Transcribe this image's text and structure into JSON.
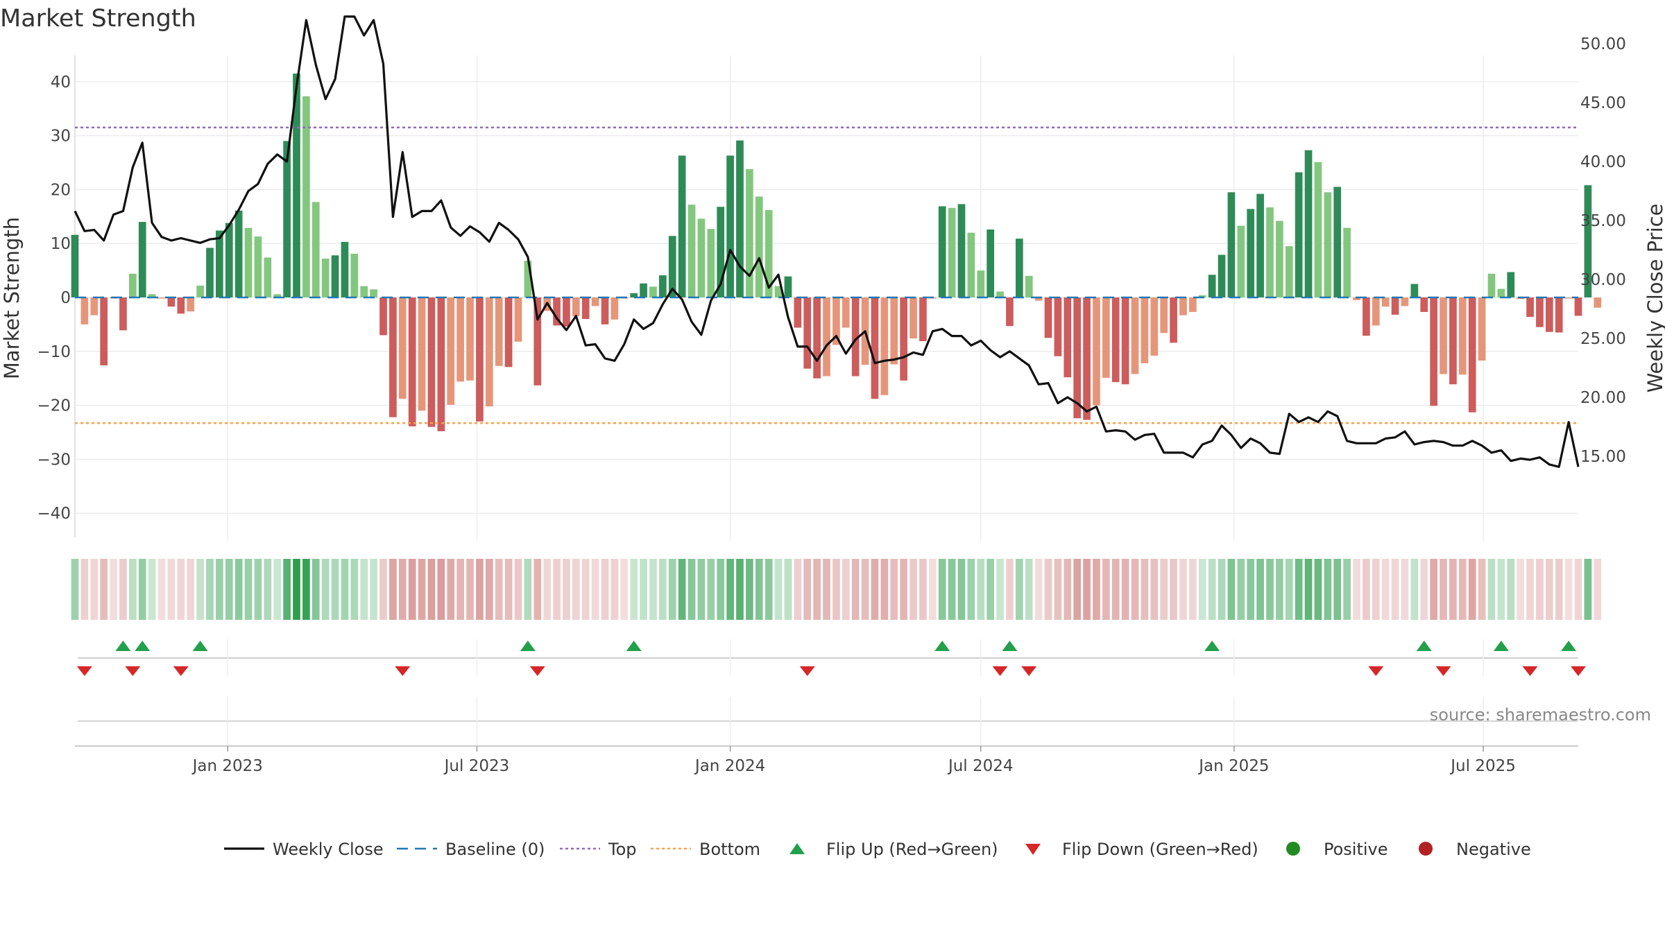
{
  "chart_data": {
    "type": "bar",
    "title": "Market Strength",
    "ylabel_left": "Market Strength",
    "ylabel_right": "Weekly Close Price",
    "ylim_left": [
      -45,
      45
    ],
    "ylim_right": [
      11.5,
      57.4
    ],
    "yticks_left": [
      "40",
      "30",
      "20",
      "10",
      "0",
      "−10",
      "−20",
      "−30",
      "−40"
    ],
    "yticks_left_values": [
      40,
      30,
      20,
      10,
      0,
      -10,
      -20,
      -30,
      -40
    ],
    "yticks_right": [
      "50.00",
      "45.00",
      "40.00",
      "35.00",
      "30.00",
      "25.00",
      "20.00",
      "15.00"
    ],
    "yticks_right_values": [
      50,
      45,
      40,
      35,
      30,
      25,
      20,
      15
    ],
    "x_range": [
      "2022-09-12",
      "2025-09-08"
    ],
    "xticks": [
      {
        "label": "Jan 2023",
        "date": "2023-01-01"
      },
      {
        "label": "Jul 2023",
        "date": "2023-07-01"
      },
      {
        "label": "Jan 2024",
        "date": "2024-01-01"
      },
      {
        "label": "Jul 2024",
        "date": "2024-07-01"
      },
      {
        "label": "Jan 2025",
        "date": "2025-01-01"
      },
      {
        "label": "Jul 2025",
        "date": "2025-07-01"
      }
    ],
    "top_level": 31.5,
    "bottom_level": -23.3,
    "grid": true,
    "start_date": "2022-09-12",
    "series": [
      {
        "name": "Market Strength",
        "type": "bar",
        "values": [
          11.6,
          -5,
          -3.3,
          -12.6,
          -0.2,
          -6.1,
          4.4,
          14,
          0.6,
          -0.2,
          -1.7,
          -3,
          -2.6,
          2.2,
          9.2,
          12.4,
          13.8,
          16.1,
          12.9,
          11.3,
          7.4,
          0.6,
          29,
          41.5,
          37.3,
          17.7,
          7.2,
          7.8,
          10.3,
          8.1,
          2.1,
          1.5,
          -7,
          -22.2,
          -18.8,
          -23.9,
          -21,
          -24,
          -24.8,
          -19.9,
          -15.6,
          -15.4,
          -23,
          -20.2,
          -12.7,
          -12.9,
          -8.2,
          6.8,
          -16.3,
          -2.5,
          -5.2,
          -5.4,
          -3.5,
          -4,
          -1.6,
          -5,
          -4.1,
          -0.2,
          0.8,
          2.6,
          2,
          4.1,
          11.4,
          26.3,
          17.2,
          14.6,
          12.7,
          16.8,
          26.3,
          29.1,
          23.8,
          18.7,
          16.2,
          2.1,
          3.9,
          -5.6,
          -13.2,
          -15,
          -14.6,
          -8.8,
          -5.6,
          -14.6,
          -12.5,
          -18.8,
          -18.1,
          -12.4,
          -15.4,
          -7.6,
          -8.1,
          -0.2,
          16.9,
          16.6,
          17.3,
          12,
          5,
          12.6,
          1.1,
          -5.3,
          10.9,
          4,
          -0.6,
          -7.5,
          -10.9,
          -14.8,
          -22.4,
          -22.7,
          -20,
          -14.9,
          -15.7,
          -16.1,
          -14.2,
          -12.2,
          -10.8,
          -6.6,
          -8.4,
          -3.3,
          -2.7,
          0.4,
          4.2,
          7.9,
          19.5,
          13.3,
          16.4,
          19.2,
          16.7,
          14.2,
          9.5,
          23.2,
          27.3,
          25.1,
          19.5,
          20.5,
          12.9,
          -0.5,
          -7.1,
          -5.2,
          -1.7,
          -3.2,
          -1.6,
          2.5,
          -2.7,
          -20.1,
          -14.2,
          -16.1,
          -14.3,
          -21.3,
          -11.7,
          4.4,
          1.6,
          4.7,
          -0.3,
          -3.6,
          -5.5,
          -6.4,
          -6.5,
          -0.2,
          -3.4,
          20.8,
          -1.9
        ]
      },
      {
        "name": "Weekly Close",
        "type": "line",
        "values": [
          35.8,
          34.1,
          34.2,
          33.3,
          35.5,
          35.8,
          39.5,
          41.6,
          34.8,
          33.6,
          33.3,
          33.5,
          33.3,
          33.1,
          33.4,
          33.5,
          34.6,
          35.9,
          37.5,
          38.1,
          39.8,
          40.6,
          40,
          46.4,
          52,
          48.2,
          45.3,
          47,
          52.3,
          52.3,
          50.7,
          52,
          48.3,
          35.3,
          40.8,
          35.3,
          35.8,
          35.8,
          36.7,
          34.4,
          33.7,
          34.5,
          34,
          33.2,
          34.8,
          34.2,
          33.4,
          31.9,
          26.6,
          28,
          26.7,
          25.7,
          26.9,
          24.4,
          24.5,
          23.3,
          23.1,
          24.5,
          26.6,
          25.8,
          26.3,
          27.9,
          29.2,
          28.3,
          26.4,
          25.3,
          28.2,
          29.6,
          32.5,
          31.1,
          30.3,
          31.8,
          29.3,
          30.4,
          26.8,
          24.3,
          24.3,
          23.1,
          24.4,
          25.2,
          23.7,
          24.9,
          25.6,
          22.9,
          23.1,
          23.2,
          23.4,
          23.8,
          23.6,
          25.6,
          25.8,
          25.2,
          25.2,
          24.4,
          24.8,
          24,
          23.4,
          23.9,
          23.3,
          22.7,
          21.1,
          21.2,
          19.5,
          20,
          19.5,
          18.8,
          19.2,
          17.1,
          17.2,
          17.1,
          16.4,
          16.8,
          16.9,
          15.3,
          15.3,
          15.3,
          14.9,
          16,
          16.3,
          17.6,
          16.8,
          15.7,
          16.5,
          16.1,
          15.3,
          15.2,
          18.6,
          17.9,
          18.3,
          17.9,
          18.8,
          18.4,
          16.3,
          16.1,
          16.1,
          16.1,
          16.5,
          16.6,
          17.1,
          16,
          16.2,
          16.3,
          16.2,
          15.9,
          15.9,
          16.3,
          15.9,
          15.3,
          15.5,
          14.6,
          14.8,
          14.7,
          14.9,
          14.3,
          14.1,
          17.9,
          14.1
        ]
      }
    ],
    "colors": {
      "strong_pos": "#2e8b57",
      "weak_pos": "#83c77f",
      "strong_neg": "#cd5c5c",
      "weak_neg": "#e5967a",
      "line": "#111111",
      "baseline": "#1f77b4",
      "top": "#9467bd",
      "bottom": "#ff9f4a",
      "flip_up": "#22a04a",
      "flip_down": "#d62728",
      "positive": "#228b22",
      "negative": "#b22222"
    },
    "flips_up_dates": [
      "2022-10-17",
      "2022-10-31",
      "2022-12-12",
      "2023-08-07",
      "2023-10-23",
      "2024-06-03",
      "2024-07-22",
      "2024-12-16",
      "2025-05-19",
      "2025-07-14",
      "2025-09-01"
    ],
    "flips_down_dates": [
      "2022-09-19",
      "2022-10-24",
      "2022-11-28",
      "2023-05-08",
      "2023-08-14",
      "2024-02-26",
      "2024-07-15",
      "2024-08-05",
      "2025-04-14",
      "2025-06-02",
      "2025-08-04",
      "2025-09-08"
    ],
    "legend": [
      {
        "label": "Weekly Close",
        "kind": "line"
      },
      {
        "label": "Baseline (0)",
        "kind": "dash"
      },
      {
        "label": "Top",
        "kind": "dot-top"
      },
      {
        "label": "Bottom",
        "kind": "dot-bottom"
      },
      {
        "label": "Flip Up (Red→Green)",
        "kind": "tri-up"
      },
      {
        "label": "Flip Down (Green→Red)",
        "kind": "tri-down"
      },
      {
        "label": "Positive",
        "kind": "circle-pos"
      },
      {
        "label": "Negative",
        "kind": "circle-neg"
      }
    ],
    "legend_position": "bottom",
    "source": "source: sharemaestro.com"
  }
}
